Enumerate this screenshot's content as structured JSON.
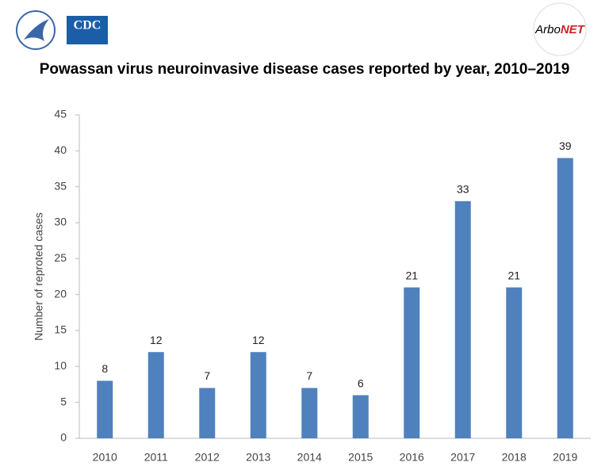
{
  "header": {
    "cdc_logo": "CDC",
    "arbonet_logo_left": "Arbo",
    "arbonet_logo_right": "NET"
  },
  "chart_data": {
    "type": "bar",
    "title": "Powassan virus neuroinvasive disease cases reported by year, 2010–2019",
    "y_label": "Number of reproted cases",
    "categories": [
      "2010",
      "2011",
      "2012",
      "2013",
      "2014",
      "2015",
      "2016",
      "2017",
      "2018",
      "2019"
    ],
    "values": [
      8,
      12,
      7,
      12,
      7,
      6,
      21,
      33,
      21,
      39
    ],
    "color": "#4f81bd",
    "ylim": [
      0,
      45
    ],
    "yticks": [
      0,
      5,
      10,
      15,
      20,
      25,
      30,
      35,
      40,
      45
    ],
    "grid": false,
    "data_labels": true
  }
}
